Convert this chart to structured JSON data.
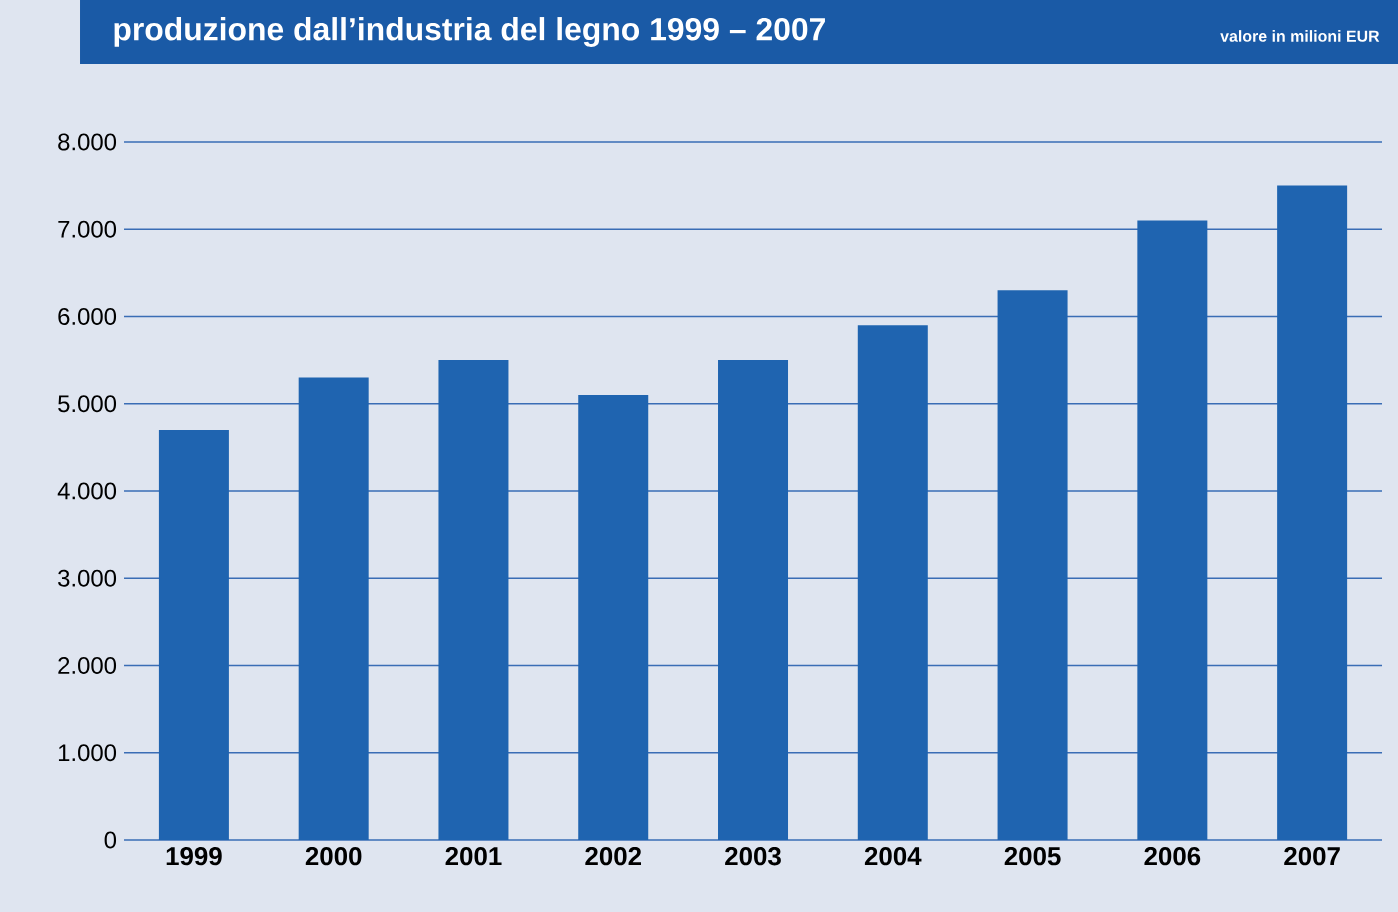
{
  "chart_data": {
    "type": "bar",
    "title": "produzione dall’industria del legno 1999 – 2007",
    "subtitle": "valore in milioni EUR",
    "categories": [
      "1999",
      "2000",
      "2001",
      "2002",
      "2003",
      "2004",
      "2005",
      "2006",
      "2007"
    ],
    "values": [
      4700,
      5300,
      5500,
      5100,
      5500,
      5900,
      6300,
      7100,
      7500
    ],
    "color": "#1f64b0",
    "ylim": [
      0,
      8000
    ],
    "yticks": [
      0,
      {
        "value": 1000,
        "label": "1.000"
      },
      {
        "value": 2000,
        "label": "2.000"
      },
      {
        "value": 3000,
        "label": "3.000"
      },
      {
        "value": 4000,
        "label": "4.000"
      },
      {
        "value": 5000,
        "label": "5.000"
      },
      {
        "value": 6000,
        "label": "6.000"
      },
      {
        "value": 7000,
        "label": "7.000"
      },
      {
        "value": 8000,
        "label": "8.000"
      }
    ],
    "grid": "y"
  }
}
